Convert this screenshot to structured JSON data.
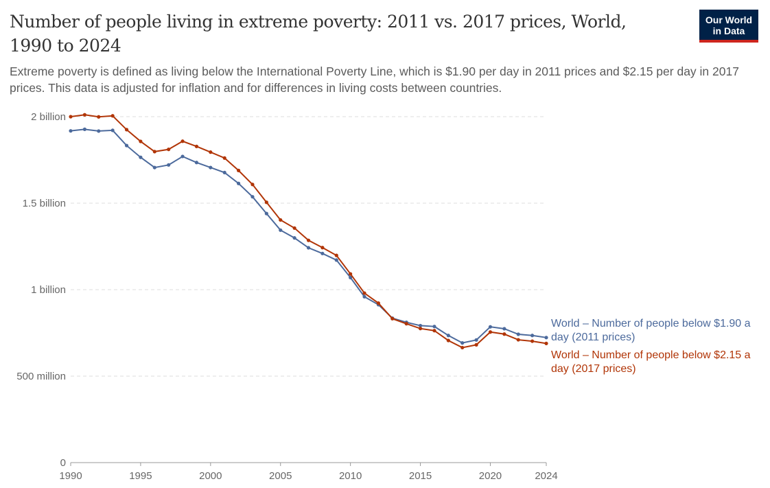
{
  "title": "Number of people living in extreme poverty: 2011 vs. 2017 prices, World, 1990 to 2024",
  "subtitle": "Extreme poverty is defined as living below the International Poverty Line, which is $1.90 per day in 2011 prices and $2.15 per day in 2017 prices. This data is adjusted for inflation and for differences in living costs between countries.",
  "logo": {
    "line1": "Our World",
    "line2": "in Data"
  },
  "chart_data": {
    "type": "line",
    "title": "Number of people living in extreme poverty: 2011 vs. 2017 prices, World, 1990 to 2024",
    "x": [
      1990,
      1991,
      1992,
      1993,
      1994,
      1995,
      1996,
      1997,
      1998,
      1999,
      2000,
      2001,
      2002,
      2003,
      2004,
      2005,
      2006,
      2007,
      2008,
      2009,
      2010,
      2011,
      2012,
      2013,
      2014,
      2015,
      2016,
      2017,
      2018,
      2019,
      2020,
      2021,
      2022,
      2023,
      2024
    ],
    "xlim": [
      1990,
      2024
    ],
    "xticks": [
      "1990",
      "1995",
      "2000",
      "2005",
      "2010",
      "2015",
      "2020",
      "2024"
    ],
    "ylim": [
      0,
      2000000000
    ],
    "yticks": [
      {
        "v": 0,
        "label": "0"
      },
      {
        "v": 500000000,
        "label": "500 million"
      },
      {
        "v": 1000000000,
        "label": "1 billion"
      },
      {
        "v": 1500000000,
        "label": "1.5 billion"
      },
      {
        "v": 2000000000,
        "label": "2 billion"
      }
    ],
    "grid": "horizontal dashed",
    "legend": "right, end-of-line labels",
    "series": [
      {
        "name": "World – Number of people below $1.90 a day (2011 prices)",
        "label_lines": [
          "World – Number of people below $1.90 a",
          "day (2011 prices)"
        ],
        "color": "#4C6A9C",
        "values": [
          1918,
          1927,
          1917,
          1921,
          1833,
          1765,
          1706,
          1721,
          1770,
          1735,
          1706,
          1677,
          1614,
          1537,
          1440,
          1344,
          1299,
          1242,
          1209,
          1171,
          1070,
          959,
          913,
          835,
          811,
          792,
          787,
          735,
          692,
          709,
          785,
          774,
          742,
          735,
          723
        ]
      },
      {
        "name": "World – Number of people below $2.15 a day (2017 prices)",
        "label_lines": [
          "World – Number of people below $2.15 a",
          "day (2017 prices)"
        ],
        "color": "#B13507",
        "values": [
          2000,
          2011,
          1999,
          2005,
          1925,
          1857,
          1798,
          1811,
          1858,
          1828,
          1795,
          1761,
          1689,
          1608,
          1505,
          1403,
          1356,
          1285,
          1243,
          1198,
          1091,
          980,
          922,
          832,
          803,
          775,
          763,
          706,
          665,
          681,
          755,
          743,
          710,
          702,
          689
        ]
      }
    ],
    "values_unit": "million people"
  }
}
